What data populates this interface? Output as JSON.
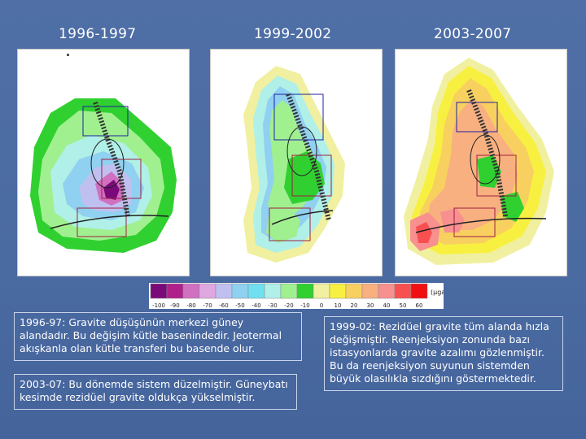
{
  "periods": [
    {
      "title": "1996-1997"
    },
    {
      "title": "1999-2002"
    },
    {
      "title": "2003-2007"
    }
  ],
  "legend": {
    "values": [
      "-100",
      "-90",
      "-80",
      "-70",
      "-60",
      "-50",
      "-40",
      "-30",
      "-20",
      "-10",
      "0",
      "10",
      "20",
      "30",
      "40",
      "50",
      "60"
    ],
    "unit": "(µgal)",
    "colors": [
      "#7a0a7a",
      "#b0208a",
      "#d070c0",
      "#e0a8e0",
      "#c0c0f0",
      "#90d0f0",
      "#70e0f0",
      "#b0f0e8",
      "#a0f090",
      "#30d030",
      "#f0f0a0",
      "#f8f040",
      "#f8d060",
      "#f8b080",
      "#f89090",
      "#f85050",
      "#f01010"
    ]
  },
  "descriptions": {
    "left_top": "1996-97: Gravite düşüşünün merkezi güney alandadır. Bu değişim kütle basenindedir. Jeotermal akışkanla olan kütle transferi bu basende olur.",
    "left_bottom": "2003-07: Bu dönemde sistem düzelmiştir. Güneybatı kesimde rezidüel gravite oldukça yükselmiştir.",
    "right": "1999-02: Rezidüel gravite tüm alanda hızla değişmiştir. Reenjeksiyon zonunda bazı istasyonlarda gravite azalımı gözlenmiştir. Bu da reenjeksiyon suyunun sistemden büyük olasılıkla sızdığını göstermektedir."
  },
  "colors": {
    "background": "#4a6aa2",
    "text": "#ffffff"
  }
}
